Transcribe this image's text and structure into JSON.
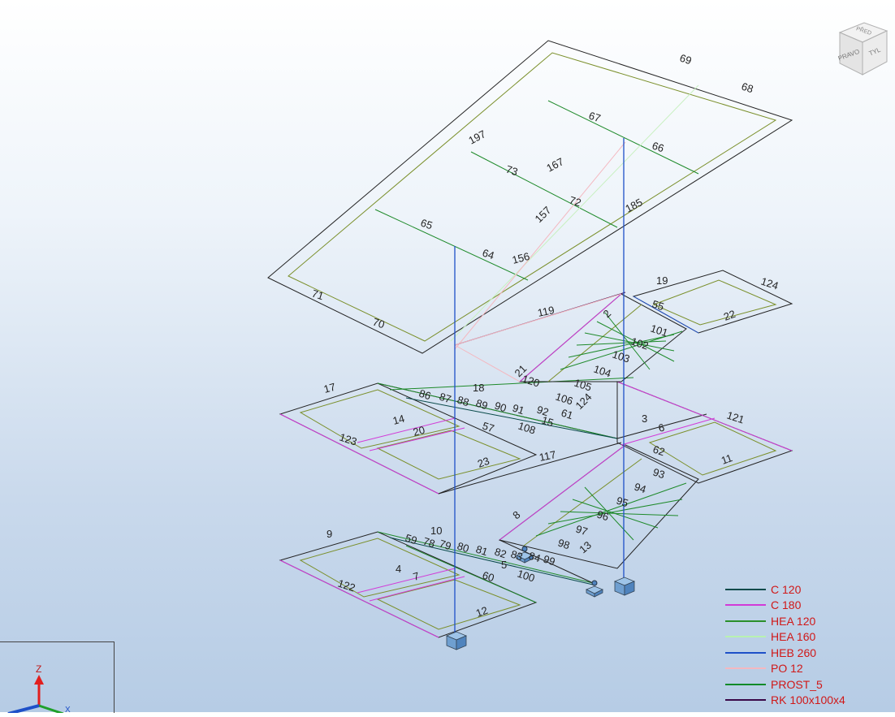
{
  "viewcube": {
    "top_label": "PŘED",
    "left_label": "PRAVO",
    "right_label": "TYL"
  },
  "axes": {
    "z": "Z",
    "x": "X"
  },
  "legend": [
    {
      "name": "C 120",
      "color": "#0a4a4a"
    },
    {
      "name": "C 180",
      "color": "#d23bd8"
    },
    {
      "name": "HEA 120",
      "color": "#2a8f2a"
    },
    {
      "name": "HEA 160",
      "color": "#b8f2b0"
    },
    {
      "name": "HEB 260",
      "color": "#1e50c8"
    },
    {
      "name": "PO 12",
      "color": "#f4b8c0"
    },
    {
      "name": "PROST_5",
      "color": "#0e8a28"
    },
    {
      "name": "RK 100x100x4",
      "color": "#3a0848"
    }
  ],
  "labels": {
    "l69": "69",
    "l68": "68",
    "l67": "67",
    "l66": "66",
    "l197": "197",
    "l73": "73",
    "l167": "167",
    "l72": "72",
    "l185": "185",
    "l157": "157",
    "l65": "65",
    "l64": "64",
    "l156": "156",
    "l71": "71",
    "l70": "70",
    "l19": "19",
    "l124": "124",
    "l55": "55",
    "l22": "22",
    "l119": "119",
    "l2": "2",
    "l101": "101",
    "l102": "102",
    "l103": "103",
    "l104": "104",
    "l105": "105",
    "l106": "106",
    "l17": "17",
    "l18": "18",
    "l21": "21",
    "l120": "120",
    "l124b": "124",
    "l14": "14",
    "l20": "20",
    "l123": "123",
    "l57": "57",
    "l108": "108",
    "l15": "15",
    "l3": "3",
    "l6": "6",
    "l121": "121",
    "l62": "62",
    "l11": "11",
    "l93": "93",
    "l23": "23",
    "l117": "117",
    "l94": "94",
    "l95": "95",
    "l96": "96",
    "l8": "8",
    "l97": "97",
    "l98": "98",
    "l13": "13",
    "l9": "9",
    "l10": "10",
    "l59": "59",
    "l4": "4",
    "l7": "7",
    "l5": "5",
    "l60": "60",
    "l100": "100",
    "l122": "122",
    "l12": "12",
    "l86": "86",
    "l87": "87",
    "l88": "88",
    "l89": "89",
    "l90": "90",
    "l91": "91",
    "l92": "92",
    "l61": "61",
    "l78": "78",
    "l79": "79",
    "l80": "80",
    "l81": "81",
    "l82": "82",
    "l83": "83",
    "l84": "84",
    "l99": "99"
  }
}
